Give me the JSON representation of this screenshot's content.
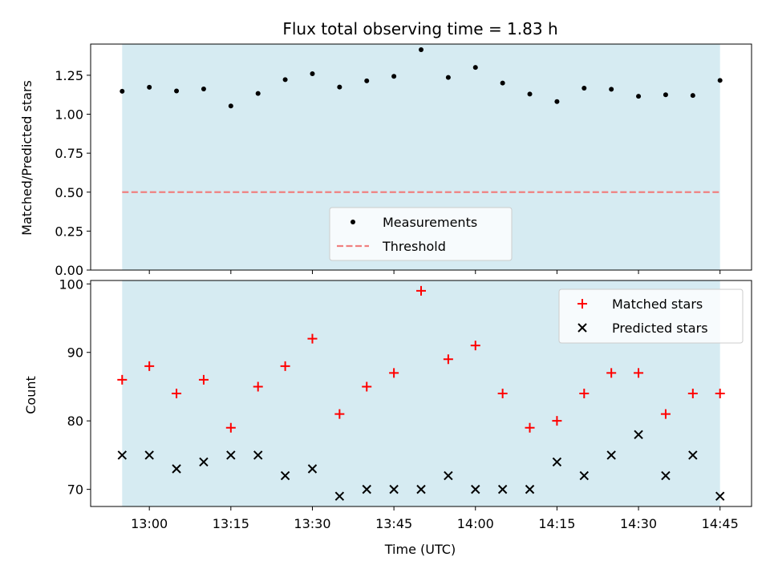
{
  "chart_data": {
    "title": "Flux total observing time = 1.83 h",
    "xlabel": "Time (UTC)",
    "x_tick_labels": [
      "13:00",
      "13:15",
      "13:30",
      "13:45",
      "14:00",
      "14:15",
      "14:30",
      "14:45"
    ],
    "colors": {
      "shade": "#add8e6",
      "measurements": "#000000",
      "threshold": "#f08080",
      "matched": "#ff0000",
      "predicted": "#000000"
    },
    "times": [
      "12:55",
      "13:00",
      "13:05",
      "13:10",
      "13:15",
      "13:20",
      "13:25",
      "13:30",
      "13:35",
      "13:40",
      "13:45",
      "13:50",
      "13:55",
      "14:00",
      "14:05",
      "14:10",
      "14:15",
      "14:20",
      "14:25",
      "14:30",
      "14:35",
      "14:40",
      "14:45"
    ],
    "shaded_interval": [
      "12:55",
      "14:45"
    ],
    "panels": [
      {
        "type": "scatter",
        "ylabel": "Matched/Predicted stars",
        "ylim": [
          0,
          1.45
        ],
        "y_ticks": [
          0.0,
          0.25,
          0.5,
          0.75,
          1.0,
          1.25
        ],
        "y_tick_labels": [
          "0.00",
          "0.25",
          "0.50",
          "0.75",
          "1.00",
          "1.25"
        ],
        "legend": {
          "placement": "lower-center",
          "entries": [
            "Measurements",
            "Threshold"
          ]
        },
        "series": [
          {
            "name": "Measurements",
            "marker": "dot",
            "values": [
              1.147,
              1.173,
              1.149,
              1.162,
              1.053,
              1.133,
              1.222,
              1.26,
              1.174,
              1.214,
              1.243,
              1.414,
              1.236,
              1.3,
              1.2,
              1.129,
              1.081,
              1.167,
              1.16,
              1.115,
              1.125,
              1.12,
              1.217
            ]
          }
        ],
        "threshold": {
          "name": "Threshold",
          "value": 0.5
        }
      },
      {
        "type": "scatter",
        "ylabel": "Count",
        "ylim": [
          67.5,
          100.5
        ],
        "y_ticks": [
          70,
          80,
          90,
          100
        ],
        "y_tick_labels": [
          "70",
          "80",
          "90",
          "100"
        ],
        "legend": {
          "placement": "upper-right",
          "entries": [
            "Matched stars",
            "Predicted stars"
          ]
        },
        "series": [
          {
            "name": "Matched stars",
            "marker": "plus",
            "values": [
              86,
              88,
              84,
              86,
              79,
              85,
              88,
              92,
              81,
              85,
              87,
              99,
              89,
              91,
              84,
              79,
              80,
              84,
              87,
              87,
              81,
              84,
              84
            ]
          },
          {
            "name": "Predicted stars",
            "marker": "x",
            "values": [
              75,
              75,
              73,
              74,
              75,
              75,
              72,
              73,
              69,
              70,
              70,
              70,
              72,
              70,
              70,
              70,
              74,
              72,
              75,
              78,
              72,
              75,
              69
            ]
          }
        ]
      }
    ]
  }
}
